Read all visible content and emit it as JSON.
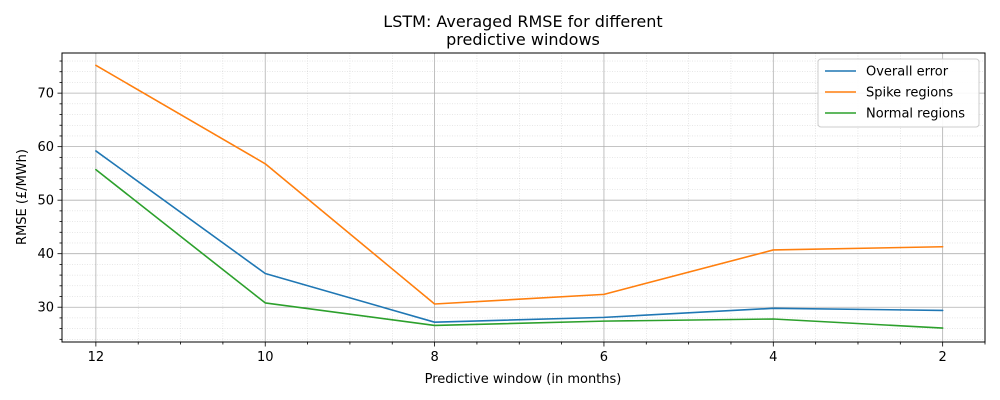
{
  "chart_data": {
    "type": "line",
    "title_lines": [
      "LSTM: Averaged RMSE for different",
      "predictive windows"
    ],
    "xlabel": "Predictive window (in months)",
    "ylabel": "RMSE (£/MWh)",
    "x_inverted": true,
    "xlim": [
      12.4,
      1.5
    ],
    "ylim": [
      23.5,
      77.5
    ],
    "x_ticks": [
      12,
      10,
      8,
      6,
      4,
      2
    ],
    "y_ticks": [
      30,
      40,
      50,
      60,
      70
    ],
    "grid": "major-and-minor",
    "legend_position": "top-right",
    "x": [
      12,
      10,
      8,
      6,
      4,
      2
    ],
    "series": [
      {
        "name": "Overall error",
        "color": "#1f77b4",
        "values": [
          59.2,
          36.3,
          27.2,
          28.1,
          29.8,
          29.4
        ]
      },
      {
        "name": "Spike regions",
        "color": "#ff7f0e",
        "values": [
          75.2,
          56.8,
          30.6,
          32.4,
          40.7,
          41.3
        ]
      },
      {
        "name": "Normal regions",
        "color": "#2ca02c",
        "values": [
          55.7,
          30.8,
          26.6,
          27.4,
          27.8,
          26.1
        ]
      }
    ]
  }
}
